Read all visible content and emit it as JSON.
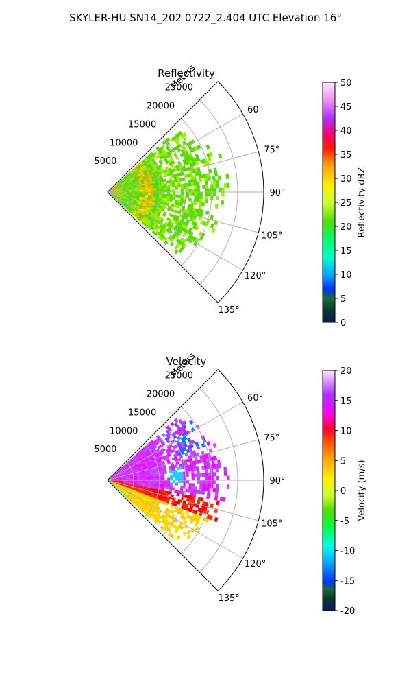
{
  "title": "SKYLER-HU  SN14_202  0722_2.404 UTC Elevation 16°",
  "chart_data": [
    {
      "type": "heatmap",
      "title": "Reflectivity",
      "radial_label": "Meters",
      "radial_ticks": [
        5000,
        10000,
        15000,
        20000,
        25000
      ],
      "radial_max": 30000,
      "azimuth_ticks": [
        60,
        75,
        90,
        105,
        120,
        135
      ],
      "azimuth_range": [
        45,
        135
      ],
      "colorbar": {
        "label": "Reflectivity dBZ",
        "range": [
          0,
          50
        ],
        "ticks": [
          0,
          5,
          10,
          15,
          20,
          25,
          30,
          35,
          40,
          45,
          50
        ]
      }
    },
    {
      "type": "heatmap",
      "title": "Velocity",
      "radial_label": "Meters",
      "radial_ticks": [
        5000,
        10000,
        15000,
        20000,
        25000
      ],
      "radial_max": 30000,
      "azimuth_ticks": [
        60,
        75,
        90,
        105,
        120,
        135
      ],
      "azimuth_range": [
        45,
        135
      ],
      "colorbar": {
        "label": "Velocity (m/s)",
        "range": [
          -20,
          20
        ],
        "ticks": [
          -20,
          -15,
          -10,
          -5,
          0,
          5,
          10,
          15,
          20
        ]
      }
    }
  ]
}
